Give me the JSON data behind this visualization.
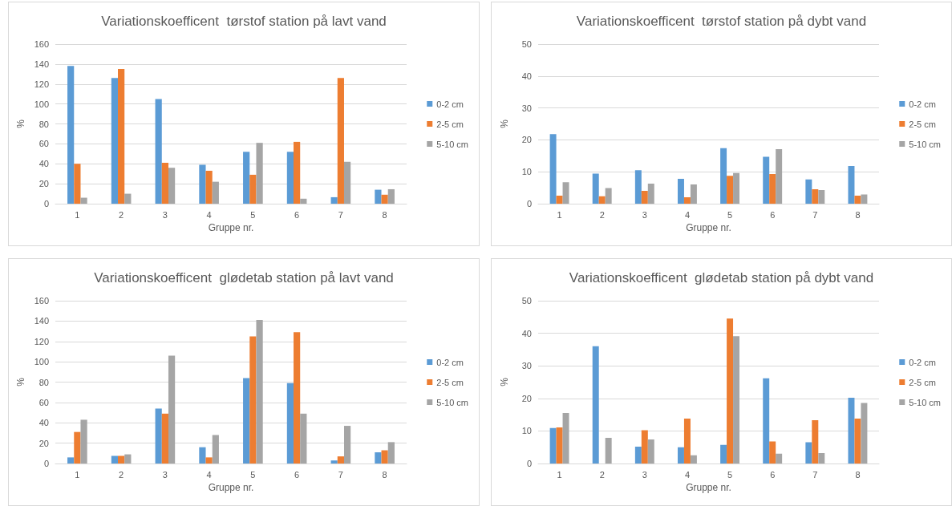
{
  "chart_data": [
    {
      "type": "bar",
      "title": "Variationskoefficent  tørstof station på lavt vand",
      "xlabel": "Gruppe nr.",
      "ylabel": "%",
      "categories": [
        "1",
        "2",
        "3",
        "4",
        "5",
        "6",
        "7",
        "8"
      ],
      "ylim": [
        0,
        160
      ],
      "yticks": [
        0,
        20,
        40,
        60,
        80,
        100,
        120,
        140,
        160
      ],
      "grid": "y",
      "legend": "right",
      "series": [
        {
          "name": "0-2 cm",
          "color": "#5b9bd5",
          "values": [
            138,
            126,
            105,
            39,
            52,
            52,
            6.5,
            14
          ]
        },
        {
          "name": "2-5 cm",
          "color": "#ed7d31",
          "values": [
            40,
            135,
            41,
            33,
            29,
            62,
            126,
            9
          ]
        },
        {
          "name": "5-10 cm",
          "color": "#a5a5a5",
          "values": [
            6,
            10,
            36,
            22,
            61,
            5,
            42,
            14.5
          ]
        }
      ]
    },
    {
      "type": "bar",
      "title": "Variationskoefficent  tørstof station på dybt vand",
      "xlabel": "Gruppe nr.",
      "ylabel": "%",
      "categories": [
        "1",
        "2",
        "3",
        "4",
        "5",
        "6",
        "7",
        "8"
      ],
      "ylim": [
        0,
        50
      ],
      "yticks": [
        0,
        10,
        20,
        30,
        40,
        50
      ],
      "grid": "y",
      "legend": "right",
      "series": [
        {
          "name": "0-2 cm",
          "color": "#5b9bd5",
          "values": [
            21.8,
            9.4,
            10.5,
            7.8,
            17.4,
            14.7,
            7.6,
            11.8
          ]
        },
        {
          "name": "2-5 cm",
          "color": "#ed7d31",
          "values": [
            2.5,
            2.3,
            4.0,
            2.0,
            8.7,
            9.3,
            4.5,
            2.5
          ]
        },
        {
          "name": "5-10 cm",
          "color": "#a5a5a5",
          "values": [
            6.7,
            4.9,
            6.3,
            6.0,
            9.6,
            17.1,
            4.3,
            2.9
          ]
        }
      ]
    },
    {
      "type": "bar",
      "title": "Variationskoefficent  glødetab station på lavt vand",
      "xlabel": "Gruppe nr.",
      "ylabel": "%",
      "categories": [
        "1",
        "2",
        "3",
        "4",
        "5",
        "6",
        "7",
        "8"
      ],
      "ylim": [
        0,
        160
      ],
      "yticks": [
        0,
        20,
        40,
        60,
        80,
        100,
        120,
        140,
        160
      ],
      "grid": "y",
      "legend": "right",
      "series": [
        {
          "name": "0-2 cm",
          "color": "#5b9bd5",
          "values": [
            6,
            7.5,
            54,
            16,
            84,
            79,
            3,
            11
          ]
        },
        {
          "name": "2-5 cm",
          "color": "#ed7d31",
          "values": [
            31,
            7.5,
            49,
            6,
            125,
            129,
            7,
            13
          ]
        },
        {
          "name": "5-10 cm",
          "color": "#a5a5a5",
          "values": [
            43,
            9,
            106,
            28,
            141,
            49,
            37,
            21
          ]
        }
      ]
    },
    {
      "type": "bar",
      "title": "Variationskoefficent  glødetab station på dybt vand",
      "xlabel": "Gruppe nr.",
      "ylabel": "%",
      "categories": [
        "1",
        "2",
        "3",
        "4",
        "5",
        "6",
        "7",
        "8"
      ],
      "ylim": [
        0,
        50
      ],
      "yticks": [
        0,
        10,
        20,
        30,
        40,
        50
      ],
      "grid": "y",
      "legend": "right",
      "series": [
        {
          "name": "0-2 cm",
          "color": "#5b9bd5",
          "values": [
            10.9,
            36,
            5.2,
            5.0,
            5.7,
            26.2,
            6.5,
            20.2
          ]
        },
        {
          "name": "2-5 cm",
          "color": "#ed7d31",
          "values": [
            11.1,
            null,
            10.2,
            13.8,
            44.5,
            6.8,
            13.3,
            13.8
          ]
        },
        {
          "name": "5-10 cm",
          "color": "#a5a5a5",
          "values": [
            15.5,
            7.9,
            7.4,
            2.5,
            39.1,
            3.0,
            3.2,
            18.6
          ]
        }
      ]
    }
  ]
}
